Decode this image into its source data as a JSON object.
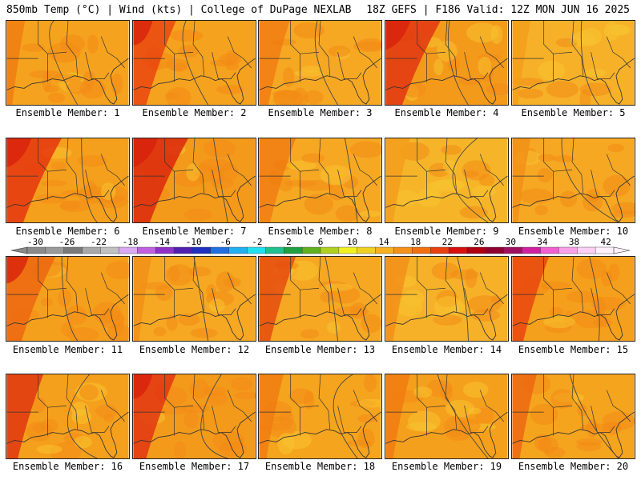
{
  "header": {
    "left": "850mb Temp (°C) | Wind (kts) | College of DuPage NEXLAB",
    "right": "18Z GEFS | F186 Valid: 12Z MON JUN 16 2025"
  },
  "panels": [
    {
      "caption": "Ensemble Member: 1",
      "base": "#f5a31e",
      "hot": "#f07b10",
      "hot_extent": 0.15,
      "cool": 0.15
    },
    {
      "caption": "Ensemble Member: 2",
      "base": "#f5a31e",
      "hot": "#e8400e",
      "hot_extent": 0.35,
      "cool": 0.1
    },
    {
      "caption": "Ensemble Member: 3",
      "base": "#f6a823",
      "hot": "#f07b10",
      "hot_extent": 0.25,
      "cool": 0.2
    },
    {
      "caption": "Ensemble Member: 4",
      "base": "#f39a1b",
      "hot": "#e03010",
      "hot_extent": 0.45,
      "cool": 0.35
    },
    {
      "caption": "Ensemble Member: 5",
      "base": "#f6b128",
      "hot": "#f49d1a",
      "hot_extent": 0.15,
      "cool": 0.6
    },
    {
      "caption": "Ensemble Member: 6",
      "base": "#f5a01c",
      "hot": "#e5300e",
      "hot_extent": 0.45,
      "cool": 0.1
    },
    {
      "caption": "Ensemble Member: 7",
      "base": "#f39a1b",
      "hot": "#d9200d",
      "hot_extent": 0.45,
      "cool": 0.1
    },
    {
      "caption": "Ensemble Member: 8",
      "base": "#f6a823",
      "hot": "#f07b10",
      "hot_extent": 0.3,
      "cool": 0.3
    },
    {
      "caption": "Ensemble Member: 9",
      "base": "#f6b529",
      "hot": "#f49d1a",
      "hot_extent": 0.2,
      "cool": 0.5
    },
    {
      "caption": "Ensemble Member: 10",
      "base": "#f6a823",
      "hot": "#f28f18",
      "hot_extent": 0.15,
      "cool": 0.2
    },
    {
      "caption": "Ensemble Member: 11",
      "base": "#f5a01c",
      "hot": "#ec6410",
      "hot_extent": 0.4,
      "cool": 0.15
    },
    {
      "caption": "Ensemble Member: 12",
      "base": "#f6a823",
      "hot": "#f28f18",
      "hot_extent": 0.15,
      "cool": 0.15
    },
    {
      "caption": "Ensemble Member: 13",
      "base": "#f6a823",
      "hot": "#e5450e",
      "hot_extent": 0.3,
      "cool": 0.3
    },
    {
      "caption": "Ensemble Member: 14",
      "base": "#f6b128",
      "hot": "#f28f18",
      "hot_extent": 0.2,
      "cool": 0.4
    },
    {
      "caption": "Ensemble Member: 15",
      "base": "#f5a01c",
      "hot": "#e8400e",
      "hot_extent": 0.3,
      "cool": 0.2
    },
    {
      "caption": "Ensemble Member: 16",
      "base": "#f5a01c",
      "hot": "#e03010",
      "hot_extent": 0.3,
      "cool": 0.2
    },
    {
      "caption": "Ensemble Member: 17",
      "base": "#f39a1b",
      "hot": "#e03010",
      "hot_extent": 0.35,
      "cool": 0.1
    },
    {
      "caption": "Ensemble Member: 18",
      "base": "#f5a41e",
      "hot": "#f07b10",
      "hot_extent": 0.2,
      "cool": 0.2
    },
    {
      "caption": "Ensemble Member: 19",
      "base": "#f5a01c",
      "hot": "#f07b10",
      "hot_extent": 0.2,
      "cool": 0.3
    },
    {
      "caption": "Ensemble Member: 20",
      "base": "#f5a41e",
      "hot": "#ec6410",
      "hot_extent": 0.2,
      "cool": 0.2
    }
  ],
  "colorbar": {
    "ticks": [
      "-30",
      "-26",
      "-22",
      "-18",
      "-14",
      "-10",
      "-6",
      "-2",
      "2",
      "6",
      "10",
      "14",
      "18",
      "22",
      "26",
      "30",
      "34",
      "38",
      "42"
    ],
    "colors": [
      "#8a8a8a",
      "#9a9a9a",
      "#7a7a7a",
      "#a8a8a8",
      "#c0c0c0",
      "#d8a8f0",
      "#c060e0",
      "#9030c8",
      "#5020b0",
      "#2030c0",
      "#2070e0",
      "#20b0f0",
      "#20e0f0",
      "#20c090",
      "#20a040",
      "#60b020",
      "#b0d020",
      "#f0f020",
      "#f0d020",
      "#f6b020",
      "#f59018",
      "#f07010",
      "#e84010",
      "#d81010",
      "#b00010",
      "#900030",
      "#a01060",
      "#d020a0",
      "#f060d0",
      "#f8a0e8",
      "#fcd0f4",
      "#fff0fc"
    ]
  }
}
